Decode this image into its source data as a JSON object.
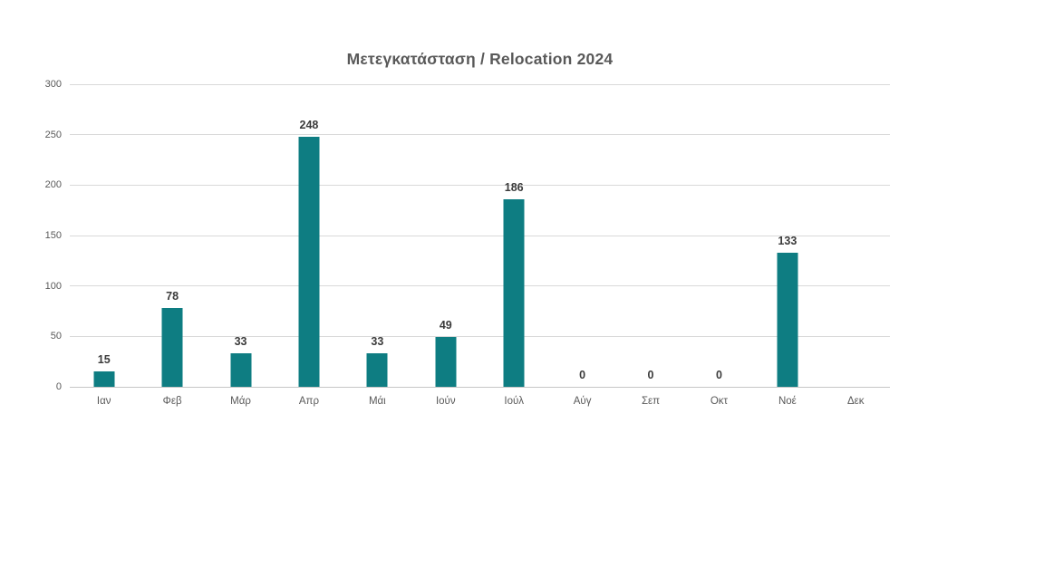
{
  "chart_data": {
    "type": "bar",
    "title": "Μετεγκατάσταση / Relocation 2024",
    "categories": [
      "Ιαν",
      "Φεβ",
      "Μάρ",
      "Απρ",
      "Μάι",
      "Ιούν",
      "Ιούλ",
      "Αύγ",
      "Σεπ",
      "Οκτ",
      "Νοέ",
      "Δεκ"
    ],
    "values": [
      15,
      78,
      33,
      248,
      33,
      49,
      186,
      0,
      0,
      0,
      133,
      null
    ],
    "data_labels": [
      "15",
      "78",
      "33",
      "248",
      "33",
      "49",
      "186",
      "0",
      "0",
      "0",
      "133",
      ""
    ],
    "y_ticks": [
      0,
      50,
      100,
      150,
      200,
      250,
      300
    ],
    "ylim": [
      0,
      300
    ],
    "xlabel": "",
    "ylabel": "",
    "grid": "horizontal",
    "legend": "none",
    "colors": {
      "bar": "#0E7D82",
      "title": "#595959",
      "axis_labels": "#595959",
      "data_labels": "#3B3B3B",
      "gridline": "#D9D9D9",
      "axis_line": "#C6C6C6",
      "background": "#FFFFFF"
    }
  }
}
